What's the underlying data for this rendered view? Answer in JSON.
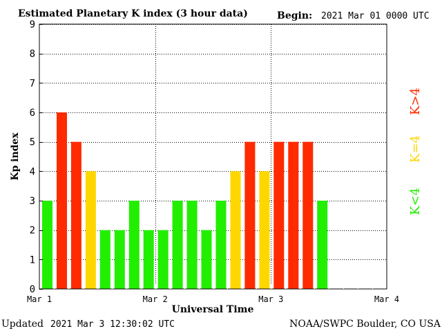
{
  "header": {
    "title": "Estimated Planetary K index (3 hour data)",
    "begin_label": "Begin:",
    "begin_value": "2021 Mar 01 0000 UTC"
  },
  "footer": {
    "updated_label": "Updated",
    "updated_value": "2021 Mar  3 12:30:02 UTC",
    "source": "NOAA/SWPC Boulder, CO USA"
  },
  "legend": {
    "high": "K>4",
    "equal": "K=4",
    "low": "K<4"
  },
  "colors": {
    "low": "#22ee00",
    "equal": "#ffd700",
    "high": "#ff2a00"
  },
  "chart_data": {
    "type": "bar",
    "title": "Estimated Planetary K index (3 hour data)",
    "xlabel": "Universal Time",
    "ylabel": "Kp index",
    "ylim": [
      0,
      9
    ],
    "yticks": [
      "0",
      "1",
      "2",
      "3",
      "4",
      "5",
      "6",
      "7",
      "8",
      "9"
    ],
    "xticks": [
      "Mar 1",
      "Mar 2",
      "Mar 3",
      "Mar 4"
    ],
    "bars_per_day": 8,
    "grid": true,
    "values": [
      3,
      6,
      5,
      4,
      2,
      2,
      3,
      2,
      2,
      3,
      3,
      2,
      3,
      4,
      5,
      4,
      5,
      5,
      5,
      3
    ]
  }
}
